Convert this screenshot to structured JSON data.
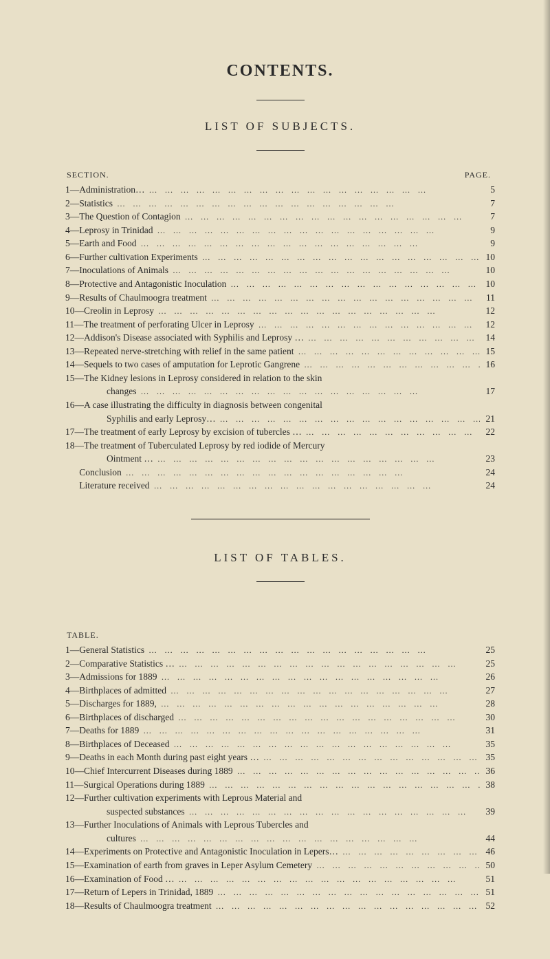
{
  "title": "CONTENTS.",
  "subjects": {
    "title": "LIST OF SUBJECTS.",
    "leftHeader": "SECTION.",
    "rightHeader": "PAGE.",
    "entries": [
      {
        "n": "1—",
        "t": "Administration…",
        "p": "5"
      },
      {
        "n": "2—",
        "t": "Statistics",
        "p": "7"
      },
      {
        "n": "3—",
        "t": "The Question of Contagion",
        "p": "7"
      },
      {
        "n": "4—",
        "t": "Leprosy in Trinidad",
        "p": "9"
      },
      {
        "n": "5—",
        "t": "Earth and Food",
        "p": "9"
      },
      {
        "n": "6—",
        "t": "Further cultivation Experiments",
        "p": "10"
      },
      {
        "n": "7—",
        "t": "Inoculations of Animals",
        "p": "10"
      },
      {
        "n": "8—",
        "t": "Protective and Antagonistic Inoculation",
        "p": "10"
      },
      {
        "n": "9—",
        "t": "Results of Chaulmoogra treatment",
        "p": "11"
      },
      {
        "n": "10—",
        "t": "Creolin in Leprosy",
        "p": "12"
      },
      {
        "n": "11—",
        "t": "The treatment of perforating Ulcer in Leprosy",
        "p": "12"
      },
      {
        "n": "12—",
        "t": "Addison's Disease associated with Syphilis and Leprosy …",
        "p": "14"
      },
      {
        "n": "13—",
        "t": "Repeated nerve-stretching with relief in the same patient",
        "p": "15"
      },
      {
        "n": "14—",
        "t": "Sequels to two cases of amputation for Leprotic Gangrene",
        "p": "16"
      },
      {
        "n": "15—",
        "t": "The Kidney lesions in Leprosy considered in relation to the skin",
        "p": ""
      },
      {
        "n": "",
        "t": "changes",
        "p": "17",
        "indent": true
      },
      {
        "n": "16—",
        "t": "A case illustrating the difficulty in diagnosis between congenital",
        "p": ""
      },
      {
        "n": "",
        "t": "Syphilis and early Leprosy…",
        "p": "21",
        "indent": true
      },
      {
        "n": "17—",
        "t": "The treatment of early Leprosy by excision of tubercles …",
        "p": "22"
      },
      {
        "n": "18—",
        "t": "The treatment of Tuberculated Leprosy by red iodide of Mercury",
        "p": ""
      },
      {
        "n": "",
        "t": "Ointment …",
        "p": "23",
        "indent": true
      },
      {
        "n": "",
        "t": "Conclusion",
        "p": "24",
        "indent": false,
        "pad": true
      },
      {
        "n": "",
        "t": "Literature received",
        "p": "24",
        "indent": false,
        "pad": true
      }
    ]
  },
  "tables": {
    "title": "LIST OF TABLES.",
    "leftHeader": "TABLE.",
    "entries": [
      {
        "n": "1—",
        "t": "General Statistics",
        "p": "25"
      },
      {
        "n": "2—",
        "t": "Comparative Statistics …",
        "p": "25"
      },
      {
        "n": "3—",
        "t": "Admissions for 1889",
        "p": "26"
      },
      {
        "n": "4—",
        "t": "Birthplaces of admitted",
        "p": "27"
      },
      {
        "n": "5—",
        "t": "Discharges for 1889,",
        "p": "28"
      },
      {
        "n": "6—",
        "t": "Birthplaces of discharged",
        "p": "30"
      },
      {
        "n": "7—",
        "t": "Deaths for 1889",
        "p": "31"
      },
      {
        "n": "8—",
        "t": "Birthplaces of Deceased",
        "p": "35"
      },
      {
        "n": "9—",
        "t": "Deaths in each Month during past eight years …",
        "p": "35"
      },
      {
        "n": "10—",
        "t": "Chief Intercurrent Diseases during 1889",
        "p": "36"
      },
      {
        "n": "11—",
        "t": "Surgical Operations during 1889",
        "p": "38"
      },
      {
        "n": "12—",
        "t": "Further cultivation experiments with Leprous Material and",
        "p": ""
      },
      {
        "n": "",
        "t": "suspected substances",
        "p": "39",
        "indent": true
      },
      {
        "n": "13—",
        "t": "Further Inoculations of Animals with Leprous Tubercles and",
        "p": ""
      },
      {
        "n": "",
        "t": "cultures",
        "p": "44",
        "indent": true
      },
      {
        "n": "14—",
        "t": "Experiments on Protective and Antagonistic Inoculation in Lepers…",
        "p": "46"
      },
      {
        "n": "15—",
        "t": "Examination of earth from graves in Leper Asylum Cemetery",
        "p": "50"
      },
      {
        "n": "16—",
        "t": "Examination of Food …",
        "p": "51"
      },
      {
        "n": "17—",
        "t": "Return of Lepers in Trinidad, 1889",
        "p": "51"
      },
      {
        "n": "18—",
        "t": "Results of Chaulmoogra treatment",
        "p": "52"
      }
    ]
  },
  "dotFill": "…  …  …  …  …  …  …  …  …  …  …  …  …  …  …  …  …  …"
}
